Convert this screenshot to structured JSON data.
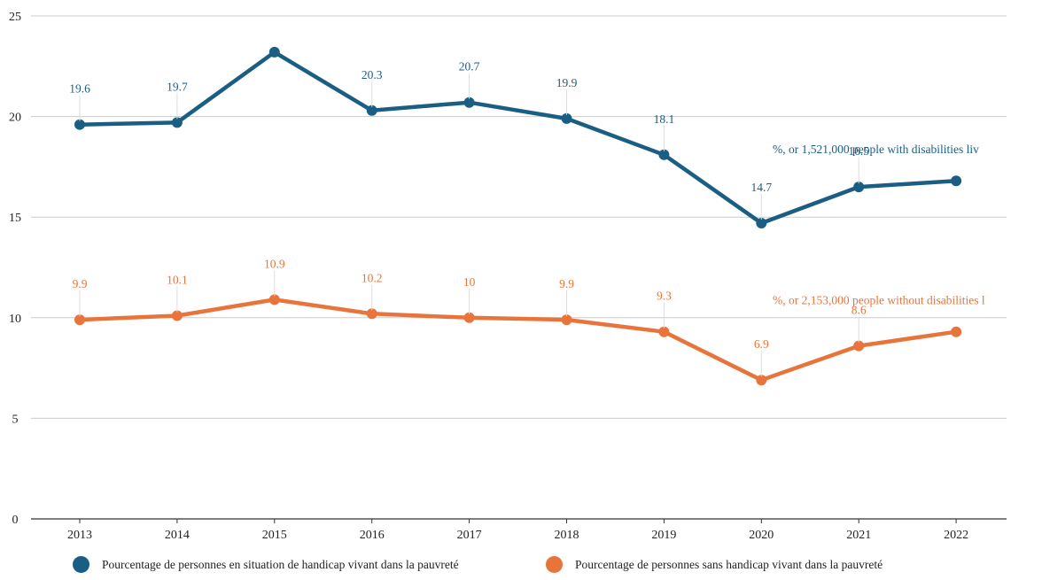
{
  "chart_data": {
    "type": "line",
    "categories": [
      "2013",
      "2014",
      "2015",
      "2016",
      "2017",
      "2018",
      "2019",
      "2020",
      "2021",
      "2022"
    ],
    "series": [
      {
        "name": "Pourcentage de personnes en situation de handicap vivant dans la pauvreté",
        "color": "#1b5e84",
        "values": [
          19.6,
          19.7,
          23.2,
          20.3,
          20.7,
          19.9,
          18.1,
          14.7,
          16.5,
          16.8
        ],
        "labels": [
          "19.6",
          "19.7",
          "",
          "20.3",
          "20.7",
          "19.9",
          "18.1",
          "14.7",
          "16.5",
          ""
        ],
        "annotation": "%, or 1,521,000 people with disabilities liv"
      },
      {
        "name": "Pourcentage de personnes sans handicap vivant dans la pauvreté",
        "color": "#e8743b",
        "values": [
          9.9,
          10.1,
          10.9,
          10.2,
          10.0,
          9.9,
          9.3,
          6.9,
          8.6,
          9.3
        ],
        "labels": [
          "9.9",
          "10.1",
          "10.9",
          "10.2",
          "10",
          "9.9",
          "9.3",
          "6.9",
          "8.6",
          ""
        ],
        "annotation": "%, or 2,153,000 people without disabilities l"
      }
    ],
    "yticks": [
      "0",
      "5",
      "10",
      "15",
      "20",
      "25"
    ],
    "ylim": [
      0,
      25
    ],
    "grid": true,
    "legend_position": "bottom"
  }
}
